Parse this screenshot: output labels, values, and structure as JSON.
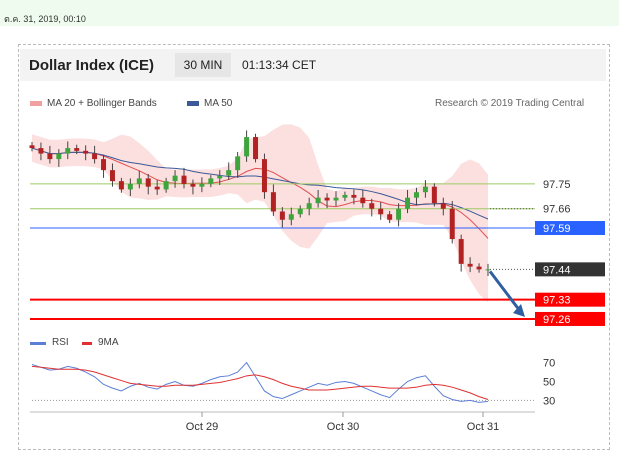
{
  "datestamp": "ต.ค. 31, 2019, 00:10",
  "header": {
    "title": "Dollar Index (ICE)",
    "timeframe": "30 MIN",
    "clock": "01:13:34 CET"
  },
  "colors": {
    "ma20": "#e05050",
    "bollinger_fill": "#fbd9d9",
    "ma50": "#3b5998",
    "candle_up": "#3ea53e",
    "candle_down": "#b22222",
    "level_green": "#9ccc60",
    "level_blue": "#2962ff",
    "level_red": "#ff0000",
    "level_dark": "#333333",
    "rsi": "#5b7fd6",
    "rsi_ma": "#e03030",
    "arrow": "#2f5fa0"
  },
  "chart_data": [
    {
      "type": "candlestick",
      "title": "Dollar Index (ICE)",
      "legend": [
        "MA 20 + Bollinger Bands",
        "MA 50"
      ],
      "credit": "Research © 2019 Trading Central",
      "x_ticks": [
        "Oct 29",
        "Oct 30",
        "Oct 31"
      ],
      "ylim": [
        97.22,
        98.0
      ],
      "price_path": [
        97.88,
        97.86,
        97.84,
        97.86,
        97.88,
        97.87,
        97.86,
        97.84,
        97.8,
        97.76,
        97.73,
        97.75,
        97.77,
        97.74,
        97.73,
        97.76,
        97.78,
        97.75,
        97.74,
        97.75,
        97.77,
        97.78,
        97.8,
        97.85,
        97.92,
        97.84,
        97.72,
        97.65,
        97.62,
        97.64,
        97.66,
        97.68,
        97.7,
        97.69,
        97.7,
        97.71,
        97.7,
        97.68,
        97.66,
        97.64,
        97.62,
        97.66,
        97.7,
        97.72,
        97.74,
        97.68,
        97.66,
        97.55,
        97.46,
        97.45,
        97.44,
        97.44
      ],
      "levels": [
        {
          "label": "97.75",
          "value": 97.75,
          "style": "green"
        },
        {
          "label": "97.66",
          "value": 97.66,
          "style": "green"
        },
        {
          "label": "97.59",
          "value": 97.59,
          "style": "blue"
        },
        {
          "label": "97.44",
          "value": 97.44,
          "style": "dark"
        },
        {
          "label": "97.33",
          "value": 97.33,
          "style": "red"
        },
        {
          "label": "97.26",
          "value": 97.26,
          "style": "red"
        }
      ],
      "forecast_arrow": {
        "from": 97.44,
        "to": 97.26
      }
    },
    {
      "type": "line",
      "legend": [
        "RSI",
        "9MA"
      ],
      "y_ticks": [
        70,
        50,
        30
      ],
      "ylim": [
        22,
        78
      ],
      "series": [
        {
          "name": "RSI",
          "values": [
            68,
            65,
            62,
            63,
            66,
            64,
            60,
            55,
            47,
            43,
            40,
            45,
            48,
            44,
            42,
            47,
            50,
            46,
            45,
            48,
            52,
            55,
            56,
            60,
            70,
            55,
            40,
            34,
            32,
            36,
            40,
            44,
            48,
            46,
            49,
            50,
            48,
            44,
            40,
            36,
            33,
            42,
            50,
            54,
            56,
            45,
            35,
            31,
            29,
            30,
            28,
            29
          ]
        },
        {
          "name": "9MA",
          "values": [
            66,
            65,
            64,
            63,
            63,
            63,
            62,
            60,
            57,
            54,
            51,
            48,
            47,
            46,
            45,
            45,
            46,
            46,
            46,
            47,
            48,
            49,
            51,
            53,
            56,
            57,
            55,
            52,
            48,
            45,
            43,
            41,
            41,
            41,
            42,
            43,
            44,
            45,
            45,
            44,
            43,
            43,
            43,
            44,
            46,
            47,
            46,
            44,
            41,
            38,
            34,
            31
          ]
        }
      ]
    }
  ]
}
